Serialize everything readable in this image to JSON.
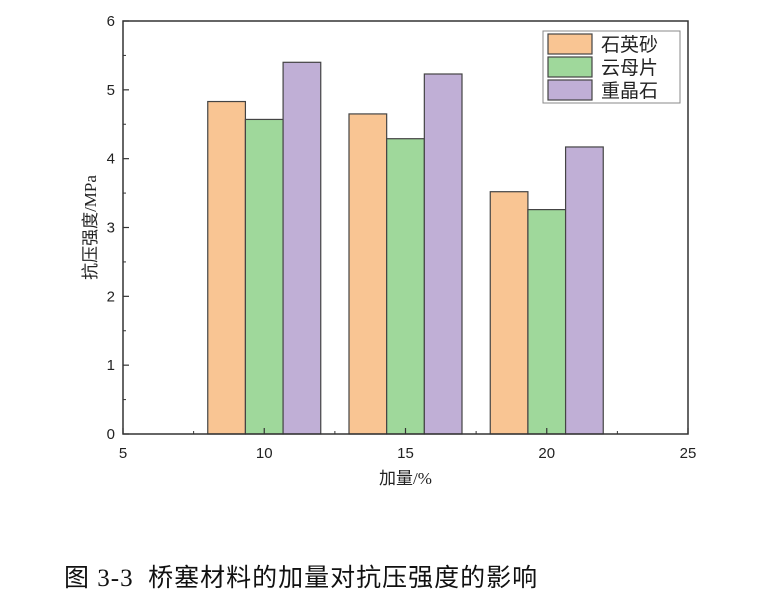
{
  "chart_data": {
    "type": "bar",
    "categories": [
      10,
      15,
      20
    ],
    "series": [
      {
        "name": "石英砂",
        "values": [
          4.83,
          4.65,
          3.52
        ],
        "color": "#F9C593"
      },
      {
        "name": "云母片",
        "values": [
          4.57,
          4.29,
          3.26
        ],
        "color": "#9FD89B"
      },
      {
        "name": "重晶石",
        "values": [
          5.4,
          5.23,
          4.17
        ],
        "color": "#C0AFD6"
      }
    ],
    "xlabel": "加量/%",
    "ylabel": "抗压强度/MPa",
    "xlim": [
      5,
      25
    ],
    "ylim": [
      0,
      6
    ],
    "xticks": [
      5,
      10,
      15,
      20,
      25
    ],
    "yticks": [
      0,
      1,
      2,
      3,
      4,
      5,
      6
    ],
    "grid": false,
    "legend": "top-right"
  },
  "caption": "图 3-3  桥塞材料的加量对抗压强度的影响"
}
